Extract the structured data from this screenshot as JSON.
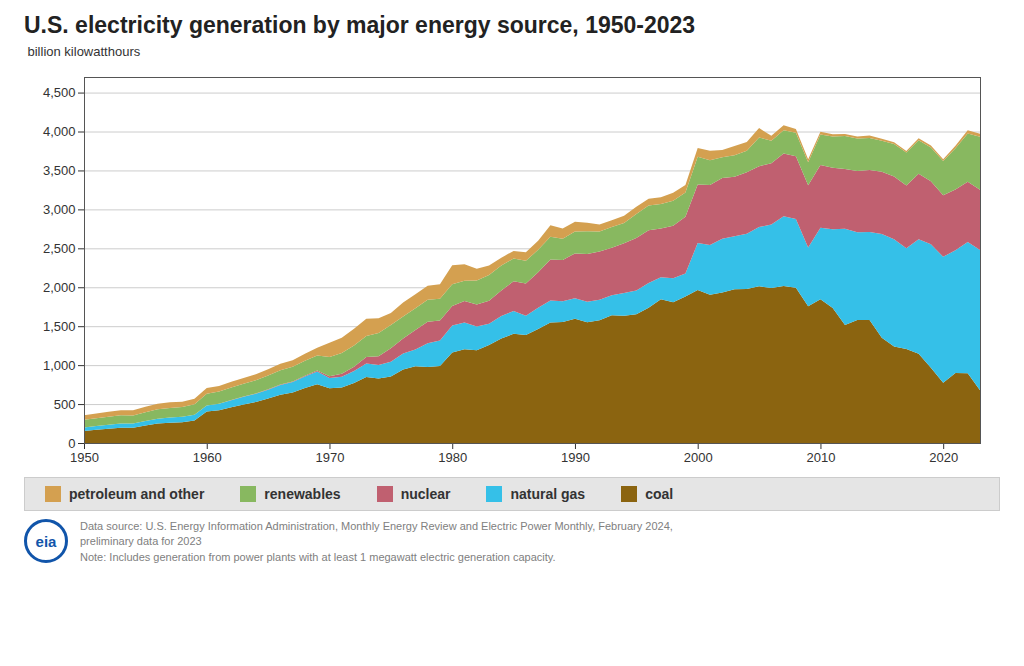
{
  "chart_data": {
    "type": "area",
    "title": "U.S. electricity generation by major energy source, 1950-2023",
    "y_label": "billion kilowatthours",
    "stacked": true,
    "grid": true,
    "legend": "bottom",
    "x": [
      1950,
      1951,
      1952,
      1953,
      1954,
      1955,
      1956,
      1957,
      1958,
      1959,
      1960,
      1961,
      1962,
      1963,
      1964,
      1965,
      1966,
      1967,
      1968,
      1969,
      1970,
      1971,
      1972,
      1973,
      1974,
      1975,
      1976,
      1977,
      1978,
      1979,
      1980,
      1981,
      1982,
      1983,
      1984,
      1985,
      1986,
      1987,
      1988,
      1989,
      1990,
      1991,
      1992,
      1993,
      1994,
      1995,
      1996,
      1997,
      1998,
      1999,
      2000,
      2001,
      2002,
      2003,
      2004,
      2005,
      2006,
      2007,
      2008,
      2009,
      2010,
      2011,
      2012,
      2013,
      2014,
      2015,
      2016,
      2017,
      2018,
      2019,
      2020,
      2021,
      2022,
      2023
    ],
    "series": [
      {
        "name": "coal",
        "color": "#8B6410",
        "values": [
          155,
          170,
          183,
          196,
          197,
          224,
          249,
          261,
          268,
          289,
          403,
          422,
          460,
          494,
          527,
          571,
          620,
          649,
          705,
          756,
          704,
          713,
          771,
          848,
          828,
          853,
          944,
          985,
          976,
          988,
          1162,
          1203,
          1192,
          1259,
          1341,
          1402,
          1386,
          1464,
          1546,
          1554,
          1594,
          1551,
          1576,
          1639,
          1635,
          1652,
          1737,
          1845,
          1807,
          1882,
          1966,
          1904,
          1933,
          1974,
          1978,
          2013,
          1991,
          2016,
          1994,
          1755,
          1847,
          1733,
          1514,
          1581,
          1581,
          1352,
          1240,
          1206,
          1146,
          966,
          774,
          900,
          895,
          676
        ]
      },
      {
        "name": "natural gas",
        "color": "#35C0E8",
        "values": [
          45,
          48,
          52,
          56,
          55,
          60,
          63,
          66,
          68,
          74,
          79,
          83,
          90,
          99,
          105,
          113,
          124,
          133,
          148,
          162,
          130,
          137,
          153,
          174,
          173,
          190,
          206,
          215,
          305,
          329,
          346,
          346,
          304,
          273,
          290,
          292,
          249,
          273,
          284,
          267,
          264,
          264,
          264,
          259,
          291,
          307,
          319,
          283,
          309,
          296,
          601,
          639,
          691,
          682,
          710,
          760,
          816,
          896,
          883,
          756,
          917,
          1013,
          1237,
          1124,
          1127,
          1333,
          1378,
          1296,
          1469,
          1586,
          1617,
          1576,
          1687,
          1801
        ]
      },
      {
        "name": "nuclear",
        "color": "#C06070",
        "values": [
          0,
          0,
          0,
          0,
          0,
          0,
          0,
          0,
          0,
          0,
          0,
          0,
          2,
          3,
          4,
          5,
          6,
          8,
          12,
          14,
          22,
          38,
          54,
          83,
          114,
          173,
          191,
          251,
          276,
          255,
          251,
          273,
          283,
          294,
          328,
          384,
          414,
          455,
          527,
          529,
          577,
          613,
          619,
          610,
          640,
          673,
          675,
          628,
          673,
          728,
          754,
          769,
          780,
          764,
          788,
          782,
          787,
          806,
          806,
          799,
          807,
          790,
          769,
          789,
          797,
          797,
          805,
          805,
          843,
          810,
          790,
          778,
          772,
          776
        ]
      },
      {
        "name": "renewables",
        "color": "#88B860",
        "values": [
          100,
          100,
          103,
          104,
          102,
          112,
          120,
          121,
          125,
          134,
          151,
          156,
          161,
          166,
          171,
          177,
          184,
          188,
          190,
          192,
          248,
          267,
          273,
          270,
          299,
          300,
          283,
          280,
          281,
          280,
          279,
          260,
          309,
          332,
          321,
          290,
          290,
          289,
          292,
          272,
          281,
          290,
          257,
          265,
          260,
          310,
          320,
          312,
          323,
          310,
          356,
          318,
          264,
          276,
          278,
          368,
          288,
          298,
          302,
          296,
          390,
          400,
          421,
          415,
          413,
          400,
          416,
          422,
          430,
          433,
          440,
          530,
          621,
          679
        ]
      },
      {
        "name": "petroleum and other",
        "color": "#D4A050",
        "values": [
          56,
          60,
          62,
          65,
          65,
          70,
          73,
          76,
          70,
          72,
          74,
          70,
          73,
          73,
          76,
          80,
          85,
          85,
          92,
          100,
          184,
          195,
          215,
          220,
          189,
          155,
          180,
          178,
          182,
          188,
          246,
          214,
          149,
          120,
          100,
          99,
          110,
          117,
          148,
          131,
          126,
          111,
          89,
          89,
          91,
          91,
          84,
          88,
          100,
          97,
          111,
          124,
          94,
          119,
          112,
          121,
          64,
          66,
          46,
          37,
          37,
          30,
          28,
          27,
          30,
          24,
          24,
          21,
          25,
          24,
          22,
          34,
          42,
          40
        ]
      }
    ],
    "xlim": [
      1950,
      2023
    ],
    "xticks": [
      1950,
      1960,
      1970,
      1980,
      1990,
      2000,
      2010,
      2020
    ],
    "ylim": [
      0,
      4700
    ],
    "yticks": [
      0,
      500,
      {
        "value": 1000,
        "label": "1,000"
      },
      {
        "value": 1500,
        "label": "1,500"
      },
      {
        "value": 2000,
        "label": "2,000"
      },
      {
        "value": 2500,
        "label": "2,500"
      },
      {
        "value": 3000,
        "label": "3,000"
      },
      {
        "value": 3500,
        "label": "3,500"
      },
      {
        "value": 4000,
        "label": "4,000"
      },
      {
        "value": 4500,
        "label": "4,500"
      }
    ],
    "annotations": [
      "Data source: U.S. Energy Information Administration, Monthly Energy Review and Electric Power Monthly, February 2024,",
      "preliminary data for 2023",
      "Note: Includes generation from power plants with at least 1 megawatt electric generation capacity.",
      "eia"
    ]
  }
}
